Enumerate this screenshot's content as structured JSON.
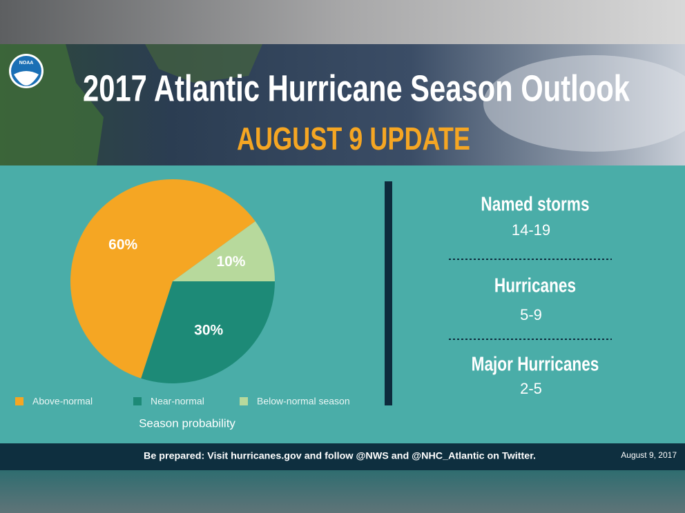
{
  "header": {
    "logo": "NOAA",
    "title": "2017 Atlantic Hurricane Season Outlook",
    "subtitle": "AUGUST 9 UPDATE"
  },
  "chart_data": {
    "type": "pie",
    "categories": [
      "Above-normal",
      "Near-normal",
      "Below-normal season"
    ],
    "values": [
      60,
      30,
      10
    ],
    "value_labels": [
      "60%",
      "30%",
      "10%"
    ],
    "colors": [
      "#f5a623",
      "#1d8a77",
      "#b7d99c"
    ],
    "caption": "Season probability"
  },
  "stats": [
    {
      "label": "Named storms",
      "range": "14-19"
    },
    {
      "label": "Hurricanes",
      "range": "5-9"
    },
    {
      "label": "Major Hurricanes",
      "range": "2-5"
    }
  ],
  "footer": {
    "text": "Be prepared: Visit hurricanes.gov and follow @NWS and @NHC_Atlantic on Twitter.",
    "date": "August 9, 2017"
  }
}
